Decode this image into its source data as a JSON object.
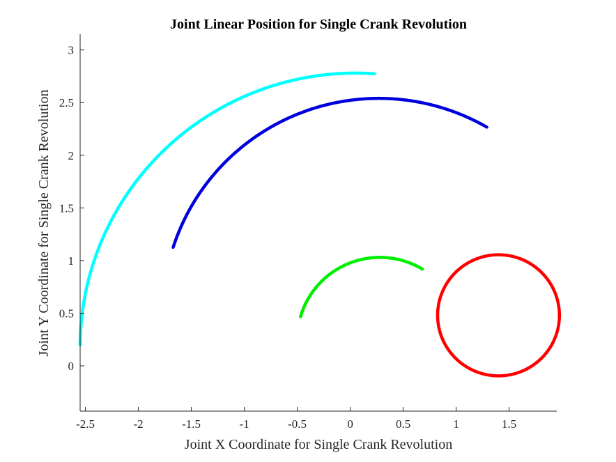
{
  "chart_data": {
    "type": "line",
    "title": "Joint Linear Position for Single Crank Revolution",
    "xlabel": "Joint X Coordinate for Single Crank Revolution",
    "ylabel": "Joint Y Coordinate for Single Crank Revolution",
    "xlim": [
      -2.55,
      1.95
    ],
    "ylim": [
      -0.43,
      3.15
    ],
    "xticks": [
      -2.5,
      -2,
      -1.5,
      -1,
      -0.5,
      0,
      0.5,
      1,
      1.5
    ],
    "xtick_labels": [
      "-2.5",
      "-2",
      "-1.5",
      "-1",
      "-0.5",
      "0",
      "0.5",
      "1",
      "1.5"
    ],
    "yticks": [
      0,
      0.5,
      1,
      1.5,
      2,
      2.5,
      3
    ],
    "ytick_labels": [
      "0",
      "0.5",
      "1",
      "1.5",
      "2",
      "2.5",
      "3"
    ],
    "grid": false,
    "series": [
      {
        "color": "#ff0000",
        "shape": "circle",
        "center": [
          1.4,
          0.48
        ],
        "radius": 0.575
      },
      {
        "color": "#00ee00",
        "shape": "arc",
        "center": [
          0.28,
          0.25
        ],
        "radius": 0.78,
        "start_point": [
          -0.58,
          0.5
        ],
        "end_point": [
          0.7,
          0.95
        ]
      },
      {
        "color": "#0000dd",
        "shape": "arc",
        "center": [
          0.27,
          0.5
        ],
        "radius": 2.04,
        "start_point": [
          -1.9,
          1.2
        ],
        "end_point": [
          1.32,
          2.32
        ]
      },
      {
        "color": "#00ffff",
        "shape": "arc",
        "center": [
          0.05,
          0.18
        ],
        "radius": 2.6,
        "start_point": [
          -2.53,
          0.2
        ],
        "end_point": [
          0.23,
          2.78
        ]
      }
    ]
  }
}
